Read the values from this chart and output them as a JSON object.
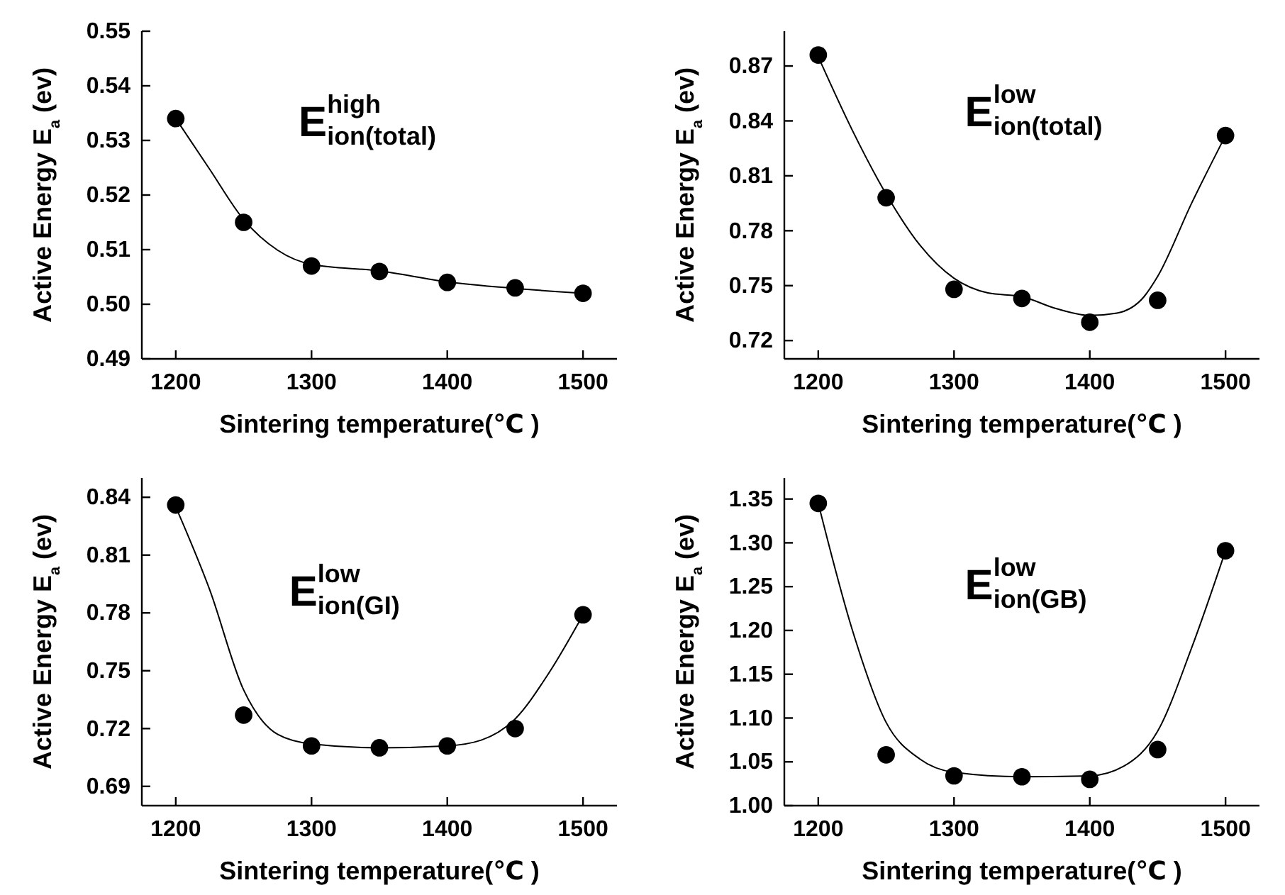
{
  "chart_data": [
    {
      "type": "scatter",
      "xlabel": "Sintering temperature(℃ )",
      "ylabel": "Active Energy  E$_{a}$ (ev)",
      "annotations": [
        "E$^{high}$$_{ion(total)}$"
      ],
      "xlim": [
        1175,
        1525
      ],
      "xticks": [
        1200,
        1300,
        1400,
        1500
      ],
      "ylim": [
        0.49,
        0.55
      ],
      "yticks": [
        0.49,
        {
          "value": 0.5,
          "label": "0.50"
        },
        0.51,
        0.52,
        0.53,
        0.54,
        0.55
      ],
      "grid": false,
      "x": [
        1200,
        1250,
        1300,
        1350,
        1400,
        1450,
        1500
      ],
      "series": [
        {
          "color": "#000000",
          "marker": "circle",
          "values": [
            0.534,
            0.515,
            0.507,
            0.506,
            0.504,
            0.503,
            0.502
          ]
        },
        {
          "type": "line",
          "color": "#000000",
          "marker": "none",
          "line_style": "solid",
          "x": [
            1200,
            1225,
            1250,
            1275,
            1300,
            1350,
            1400,
            1450,
            1500
          ],
          "values": [
            0.534,
            0.5247,
            0.5155,
            0.5099,
            0.5073,
            0.5061,
            0.5041,
            0.5029,
            0.502
          ]
        }
      ]
    },
    {
      "type": "scatter",
      "xlabel": "Sintering temperature(℃ )",
      "ylabel": "Active Energy  E$_{a}$ (ev)",
      "annotations": [
        "E$^{low}$$_{ion(total)}$"
      ],
      "xlim": [
        1175,
        1525
      ],
      "xticks": [
        1200,
        1300,
        1400,
        1500
      ],
      "ylim": [
        0.71,
        0.889
      ],
      "yticks": [
        0.72,
        0.75,
        0.78,
        0.81,
        0.84,
        0.87
      ],
      "grid": false,
      "x": [
        1200,
        1250,
        1300,
        1350,
        1400,
        1450,
        1500
      ],
      "series": [
        {
          "color": "#000000",
          "marker": "circle",
          "values": [
            0.876,
            0.798,
            0.748,
            0.743,
            0.73,
            0.742,
            0.832
          ]
        },
        {
          "type": "line",
          "color": "#000000",
          "marker": "none",
          "line_style": "solid",
          "x": [
            1200,
            1225,
            1250,
            1275,
            1300,
            1325,
            1350,
            1375,
            1400,
            1420,
            1440,
            1450,
            1475,
            1500
          ],
          "values": [
            0.875,
            0.835,
            0.8,
            0.772,
            0.754,
            0.746,
            0.744,
            0.7375,
            0.7337,
            0.735,
            0.744,
            0.755,
            0.795,
            0.832
          ]
        }
      ]
    },
    {
      "type": "scatter",
      "xlabel": "Sintering temperature(℃ )",
      "ylabel": "Active Energy  E$_{a}$ (ev)",
      "annotations": [
        "E$^{low}$$_{ion(GI)}$"
      ],
      "xlim": [
        1175,
        1525
      ],
      "xticks": [
        1200,
        1300,
        1400,
        1500
      ],
      "ylim": [
        0.68,
        0.85
      ],
      "yticks": [
        0.69,
        0.72,
        0.75,
        0.78,
        0.81,
        0.84
      ],
      "grid": false,
      "x": [
        1200,
        1250,
        1300,
        1350,
        1400,
        1450,
        1500
      ],
      "series": [
        {
          "color": "#000000",
          "marker": "circle",
          "values": [
            0.836,
            0.727,
            0.711,
            0.71,
            0.711,
            0.72,
            0.779
          ]
        },
        {
          "type": "line",
          "color": "#000000",
          "marker": "none",
          "line_style": "solid",
          "x": [
            1200,
            1225,
            1250,
            1275,
            1300,
            1350,
            1400,
            1425,
            1450,
            1475,
            1500
          ],
          "values": [
            0.835,
            0.792,
            0.74,
            0.717,
            0.712,
            0.71,
            0.711,
            0.714,
            0.725,
            0.749,
            0.779
          ]
        }
      ]
    },
    {
      "type": "scatter",
      "xlabel": "Sintering temperature(℃ )",
      "ylabel": "Active Energy  E$_{a}$ (ev)",
      "annotations": [
        "E$^{low}$$_{ion(GB)}$"
      ],
      "xlim": [
        1175,
        1525
      ],
      "xticks": [
        1200,
        1300,
        1400,
        1500
      ],
      "ylim": [
        1.0,
        1.374
      ],
      "yticks": [
        {
          "value": 1.0,
          "label": "1.00"
        },
        {
          "value": 1.05,
          "label": "1.05"
        },
        {
          "value": 1.1,
          "label": "1.10"
        },
        {
          "value": 1.15,
          "label": "1.15"
        },
        {
          "value": 1.2,
          "label": "1.20"
        },
        {
          "value": 1.25,
          "label": "1.25"
        },
        {
          "value": 1.3,
          "label": "1.30"
        },
        {
          "value": 1.35,
          "label": "1.35"
        }
      ],
      "grid": false,
      "x": [
        1200,
        1250,
        1300,
        1350,
        1400,
        1450,
        1500
      ],
      "series": [
        {
          "color": "#000000",
          "marker": "circle",
          "values": [
            1.345,
            1.058,
            1.034,
            1.033,
            1.03,
            1.064,
            1.291
          ]
        },
        {
          "type": "line",
          "color": "#000000",
          "marker": "none",
          "line_style": "solid",
          "x": [
            1200,
            1225,
            1250,
            1275,
            1300,
            1350,
            1400,
            1425,
            1450,
            1475,
            1500
          ],
          "values": [
            1.345,
            1.201,
            1.095,
            1.053,
            1.038,
            1.033,
            1.034,
            1.045,
            1.085,
            1.18,
            1.291
          ]
        }
      ]
    }
  ]
}
